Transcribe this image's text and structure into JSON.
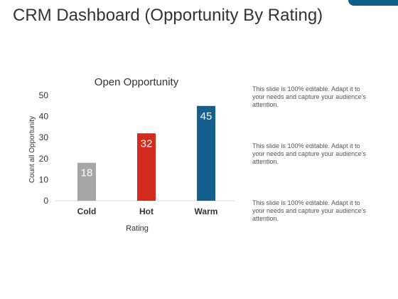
{
  "page": {
    "title": "CRM Dashboard (Opportunity By Rating)"
  },
  "colors": {
    "accent": "#0f5e8c"
  },
  "notes": [
    "This slide is 100% editable. Adapt it to your needs and capture your audience's attention.",
    "This slide is 100% editable. Adapt it to your needs and capture your audience's attention.",
    "This slide is 100% editable. Adapt it to your needs and capture your audience's attention."
  ],
  "chart_data": {
    "type": "bar",
    "title": "Open Opportunity",
    "xlabel": "Rating",
    "ylabel": "Count  all  Opportunity",
    "categories": [
      "Cold",
      "Hot",
      "Warm"
    ],
    "values": [
      18,
      32,
      45
    ],
    "colors": [
      "#a6a6a6",
      "#d52b1e",
      "#16608f"
    ],
    "ylim": [
      0,
      50
    ],
    "yticks": [
      0,
      10,
      20,
      30,
      40,
      50
    ],
    "grid": false,
    "data_labels": true
  }
}
